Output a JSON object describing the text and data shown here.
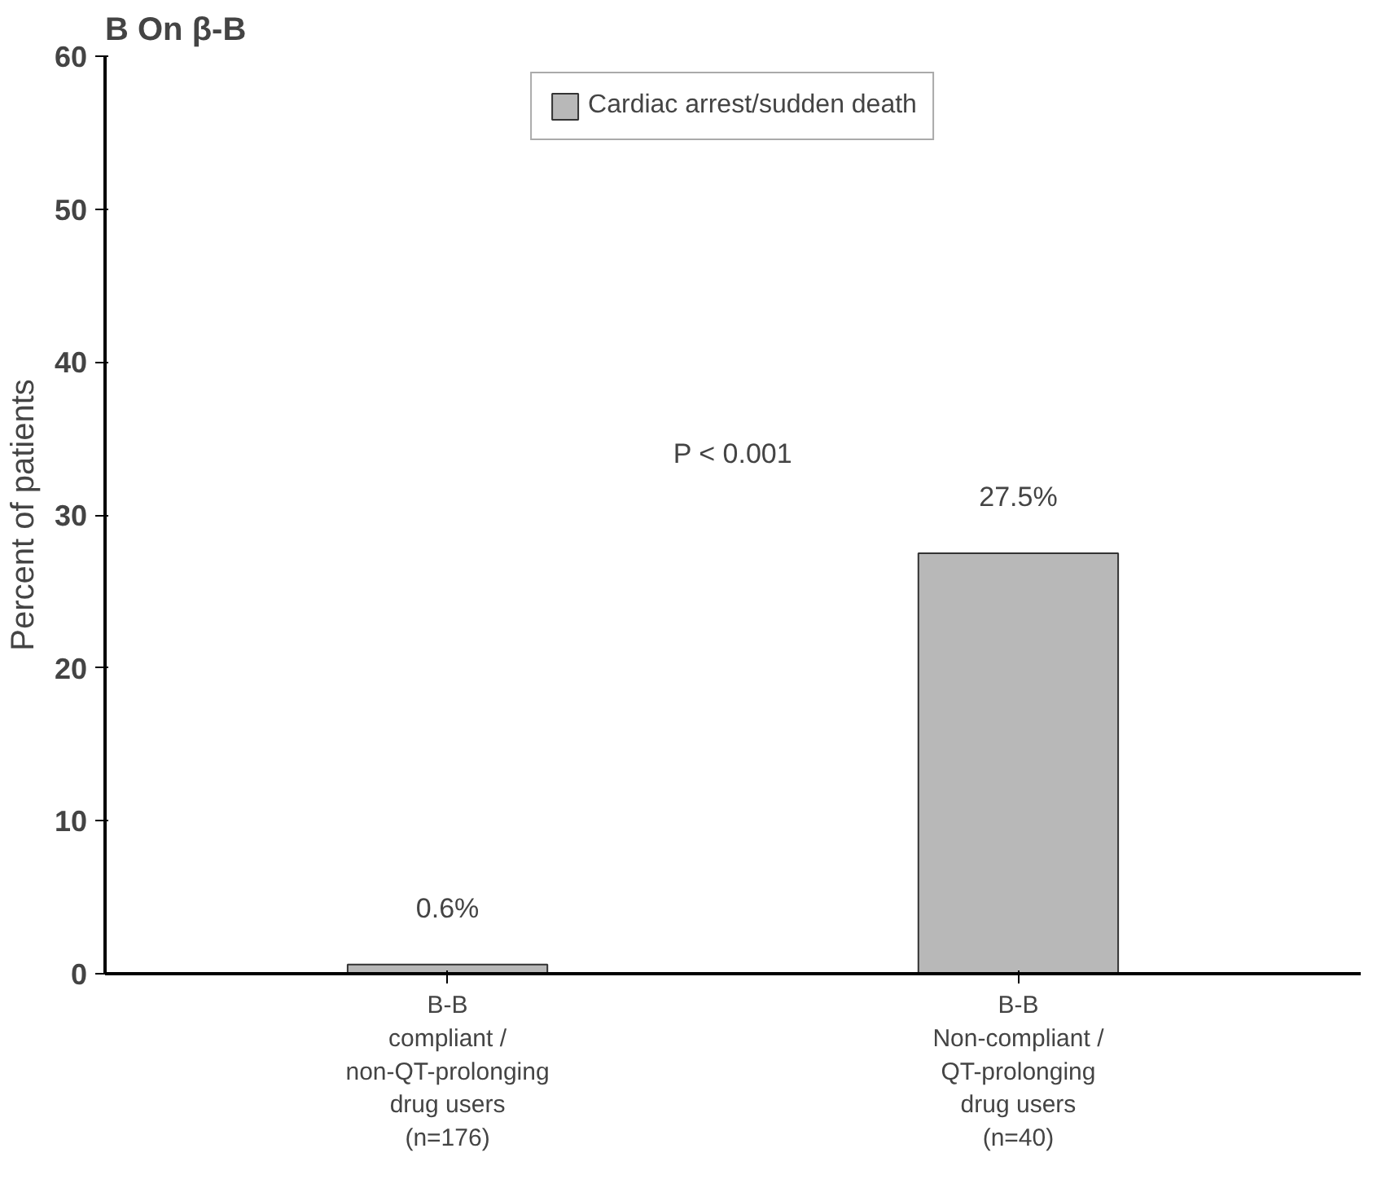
{
  "chart_data": {
    "type": "bar",
    "title": "B On β-B",
    "ylabel": "Percent of patients",
    "categories": [
      "B-B\ncompliant /\nnon-QT-prolonging\ndrug users\n(n=176)",
      "B-B\nNon-compliant /\nQT-prolonging\ndrug users\n(n=40)"
    ],
    "series": [
      {
        "name": "Cardiac arrest/sudden death",
        "color": "#b8b8b8",
        "values": [
          0.6,
          27.5
        ],
        "value_labels": [
          "0.6%",
          "27.5%"
        ]
      }
    ],
    "ylim": [
      0,
      60
    ],
    "yticks": [
      0,
      10,
      20,
      30,
      40,
      50,
      60
    ],
    "grid": false,
    "legend": "top",
    "annotations": [
      "P < 0.001"
    ]
  }
}
